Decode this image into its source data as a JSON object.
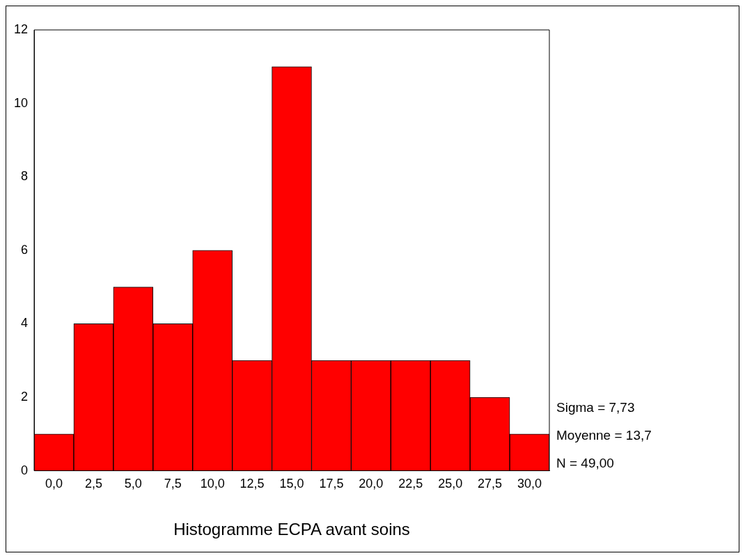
{
  "chart_data": {
    "type": "histogram",
    "xlabel": "Histogramme ECPA avant soins",
    "bins": [
      -1.25,
      1.25,
      3.75,
      6.25,
      8.75,
      11.25,
      13.75,
      16.25,
      18.75,
      21.25,
      23.75,
      26.25,
      28.75,
      31.25
    ],
    "values": [
      1,
      4,
      5,
      4,
      6,
      3,
      11,
      3,
      3,
      3,
      3,
      2,
      1
    ],
    "color": "#ff0000",
    "xlim": [
      -1.25,
      31.25
    ],
    "xticks": [
      {
        "value": 0,
        "label": "0,0"
      },
      {
        "value": 2.5,
        "label": "2,5"
      },
      {
        "value": 5,
        "label": "5,0"
      },
      {
        "value": 7.5,
        "label": "7,5"
      },
      {
        "value": 10,
        "label": "10,0"
      },
      {
        "value": 12.5,
        "label": "12,5"
      },
      {
        "value": 15,
        "label": "15,0"
      },
      {
        "value": 17.5,
        "label": "17,5"
      },
      {
        "value": 20,
        "label": "20,0"
      },
      {
        "value": 22.5,
        "label": "22,5"
      },
      {
        "value": 25,
        "label": "25,0"
      },
      {
        "value": 27.5,
        "label": "27,5"
      },
      {
        "value": 30,
        "label": "30,0"
      }
    ],
    "ylim": [
      0,
      12
    ],
    "yticks": [
      0,
      2,
      4,
      6,
      8,
      10,
      12
    ],
    "grid": false,
    "legend": false,
    "annotations": [
      "Sigma = 7,73",
      "Moyenne = 13,7",
      "N = 49,00"
    ]
  }
}
